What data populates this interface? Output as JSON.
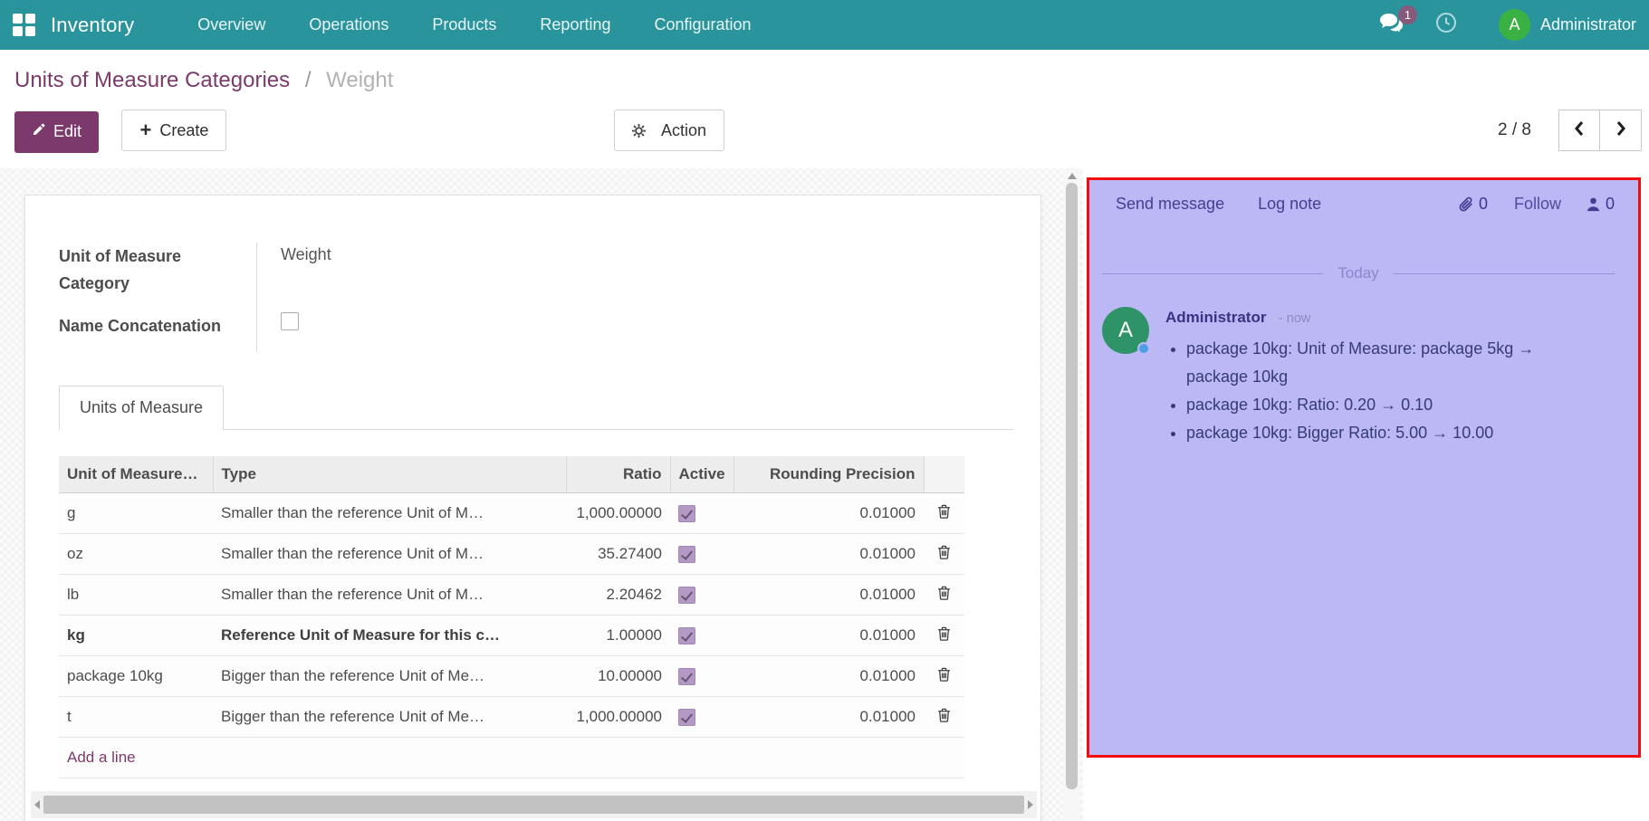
{
  "navbar": {
    "app_label": "Inventory",
    "menu_items": [
      "Overview",
      "Operations",
      "Products",
      "Reporting",
      "Configuration"
    ],
    "messages_badge": "1",
    "user_initial": "A",
    "user_name": "Administrator"
  },
  "breadcrumb": {
    "parent": "Units of Measure Categories",
    "separator": "/",
    "current": "Weight"
  },
  "actions": {
    "edit": "Edit",
    "create": "Create",
    "action": "Action",
    "pager": "2 / 8"
  },
  "form": {
    "category_label": "Unit of Measure Category",
    "category_value": "Weight",
    "concat_label": "Name Concatenation",
    "concat_checked": false,
    "tab_label": "Units of Measure"
  },
  "uom_table": {
    "headers": [
      "Unit of Measure…",
      "Type",
      "Ratio",
      "Active",
      "Rounding Precision"
    ],
    "rows": [
      {
        "name": "g",
        "type": "Smaller than the reference Unit of M…",
        "ratio": "1,000.00000",
        "active": true,
        "rounding": "0.01000",
        "reference": false
      },
      {
        "name": "oz",
        "type": "Smaller than the reference Unit of M…",
        "ratio": "35.27400",
        "active": true,
        "rounding": "0.01000",
        "reference": false
      },
      {
        "name": "lb",
        "type": "Smaller than the reference Unit of M…",
        "ratio": "2.20462",
        "active": true,
        "rounding": "0.01000",
        "reference": false
      },
      {
        "name": "kg",
        "type": "Reference Unit of Measure for this c…",
        "ratio": "1.00000",
        "active": true,
        "rounding": "0.01000",
        "reference": true
      },
      {
        "name": "package 10kg",
        "type": "Bigger than the reference Unit of Me…",
        "ratio": "10.00000",
        "active": true,
        "rounding": "0.01000",
        "reference": false
      },
      {
        "name": "t",
        "type": "Bigger than the reference Unit of Me…",
        "ratio": "1,000.00000",
        "active": true,
        "rounding": "0.01000",
        "reference": false
      }
    ],
    "add_line_label": "Add a line"
  },
  "chatter": {
    "send_message_label": "Send message",
    "log_note_label": "Log note",
    "attachment_count": "0",
    "follow_label": "Follow",
    "follower_count": "0",
    "date_divider": "Today",
    "message": {
      "author": "Administrator",
      "timestamp": "- now",
      "avatar_initial": "A",
      "changes": [
        "package 10kg: Unit of Measure: package 5kg → package 10kg",
        "package 10kg: Ratio: 0.20 → 0.10",
        "package 10kg: Bigger Ratio: 5.00 → 10.00"
      ]
    }
  },
  "colors": {
    "navbar_teal": "#2a949d",
    "primary_purple": "#7c3a6c",
    "badge_purple": "#875a7b",
    "avatar_green": "#3bb143",
    "highlight_panel": "#bbb8f5",
    "highlight_border": "#f10d0d",
    "checkbox_purple": "#b499c6"
  }
}
